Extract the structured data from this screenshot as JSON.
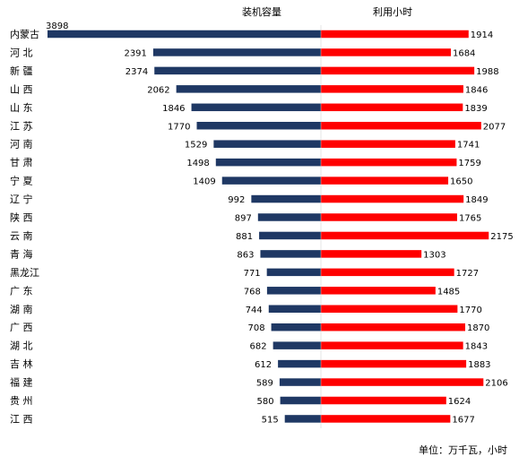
{
  "chart_data": {
    "type": "bar",
    "layout": "butterfly",
    "series": [
      {
        "name": "装机容量",
        "color": "#1f3864",
        "values": [
          3898,
          2391,
          2374,
          2062,
          1846,
          1770,
          1529,
          1498,
          1409,
          992,
          897,
          881,
          863,
          771,
          768,
          744,
          708,
          682,
          612,
          589,
          580,
          515
        ]
      },
      {
        "name": "利用小时",
        "color": "#ff0000",
        "values": [
          1914,
          1684,
          1988,
          1846,
          1839,
          2077,
          1741,
          1759,
          1650,
          1849,
          1765,
          2175,
          1303,
          1727,
          1485,
          1770,
          1870,
          1843,
          1883,
          2106,
          1624,
          1677
        ]
      }
    ],
    "categories": [
      "内蒙古",
      "河 北",
      "新 疆",
      "山 西",
      "山 东",
      "江 苏",
      "河 南",
      "甘 肃",
      "宁 夏",
      "辽 宁",
      "陕 西",
      "云 南",
      "青 海",
      "黑龙江",
      "广 东",
      "湖 南",
      "广 西",
      "湖 北",
      "吉 林",
      "福 建",
      "贵 州",
      "江 西"
    ],
    "unit_note": "单位：万千瓦，小时",
    "xlim_left": [
      0,
      3898
    ],
    "xlim_right": [
      0,
      2300
    ],
    "grid": false
  }
}
